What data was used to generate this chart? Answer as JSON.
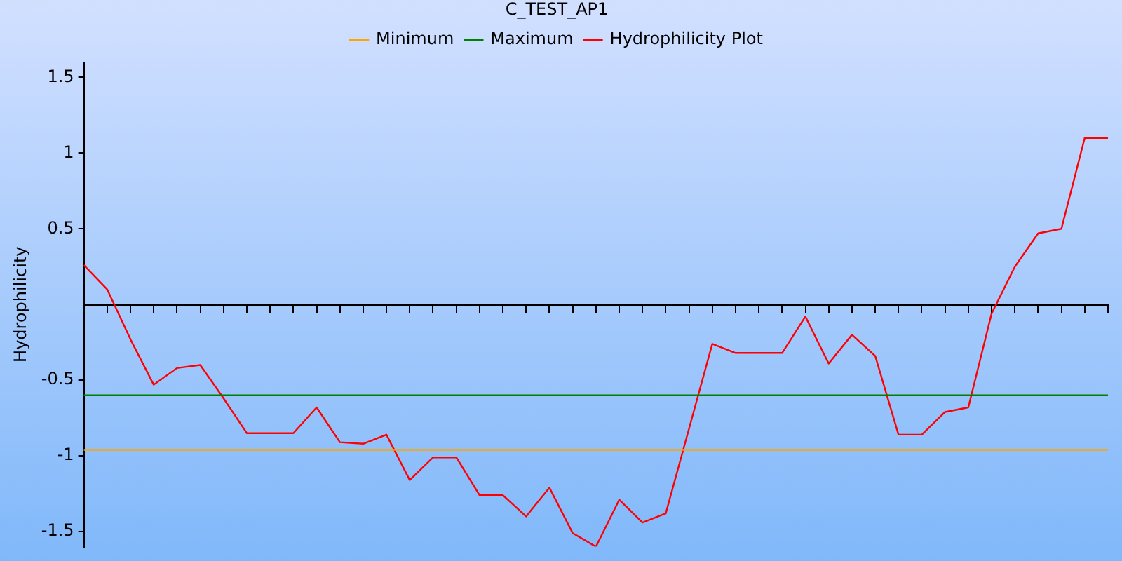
{
  "chart_data": {
    "type": "line",
    "title": "C_TEST_AP1",
    "ylabel": "Hydrophilicity",
    "categories": [
      null,
      null,
      null,
      null,
      null,
      null,
      null,
      null,
      null,
      null,
      null,
      null,
      null,
      null,
      null,
      null,
      null,
      null,
      null,
      null,
      null,
      null,
      null,
      null,
      null,
      null,
      null,
      null,
      null,
      null,
      null,
      null,
      null,
      null,
      null,
      null,
      null,
      null,
      null,
      null,
      null,
      null,
      null,
      null,
      null
    ],
    "series": [
      {
        "name": "Minimum",
        "color": "#ffa500",
        "values": [
          -0.96,
          -0.96,
          -0.96,
          -0.96,
          -0.96,
          -0.96,
          -0.96,
          -0.96,
          -0.96,
          -0.96,
          -0.96,
          -0.96,
          -0.96,
          -0.96,
          -0.96,
          -0.96,
          -0.96,
          -0.96,
          -0.96,
          -0.96,
          -0.96,
          -0.96,
          -0.96,
          -0.96,
          -0.96,
          -0.96,
          -0.96,
          -0.96,
          -0.96,
          -0.96,
          -0.96,
          -0.96,
          -0.96,
          -0.96,
          -0.96,
          -0.96,
          -0.96,
          -0.96,
          -0.96,
          -0.96,
          -0.96,
          -0.96,
          -0.96,
          -0.96,
          -0.96
        ]
      },
      {
        "name": "Maximum",
        "color": "#008000",
        "values": [
          -0.6,
          -0.6,
          -0.6,
          -0.6,
          -0.6,
          -0.6,
          -0.6,
          -0.6,
          -0.6,
          -0.6,
          -0.6,
          -0.6,
          -0.6,
          -0.6,
          -0.6,
          -0.6,
          -0.6,
          -0.6,
          -0.6,
          -0.6,
          -0.6,
          -0.6,
          -0.6,
          -0.6,
          -0.6,
          -0.6,
          -0.6,
          -0.6,
          -0.6,
          -0.6,
          -0.6,
          -0.6,
          -0.6,
          -0.6,
          -0.6,
          -0.6,
          -0.6,
          -0.6,
          -0.6,
          -0.6,
          -0.6,
          -0.6,
          -0.6,
          -0.6,
          -0.6
        ]
      },
      {
        "name": "Hydrophilicity Plot",
        "color": "#ff0000",
        "values": [
          0.26,
          0.1,
          -0.23,
          -0.53,
          -0.42,
          -0.4,
          -0.62,
          -0.85,
          -0.85,
          -0.85,
          -0.68,
          -0.91,
          -0.92,
          -0.86,
          -1.16,
          -1.01,
          -1.01,
          -1.26,
          -1.26,
          -1.4,
          -1.21,
          -1.51,
          -1.6,
          -1.29,
          -1.44,
          -1.38,
          -0.82,
          -0.26,
          -0.32,
          -0.32,
          -0.32,
          -0.08,
          -0.39,
          -0.2,
          -0.34,
          -0.86,
          -0.86,
          -0.71,
          -0.68,
          -0.06,
          0.25,
          0.47,
          0.5,
          1.1,
          1.1
        ]
      }
    ],
    "ylim": [
      -1.6,
      1.6
    ],
    "yticks": [
      -1.5,
      -1,
      -0.5,
      0.5,
      1,
      1.5
    ],
    "tick_labels": "y",
    "grid": false,
    "legend": "top"
  }
}
